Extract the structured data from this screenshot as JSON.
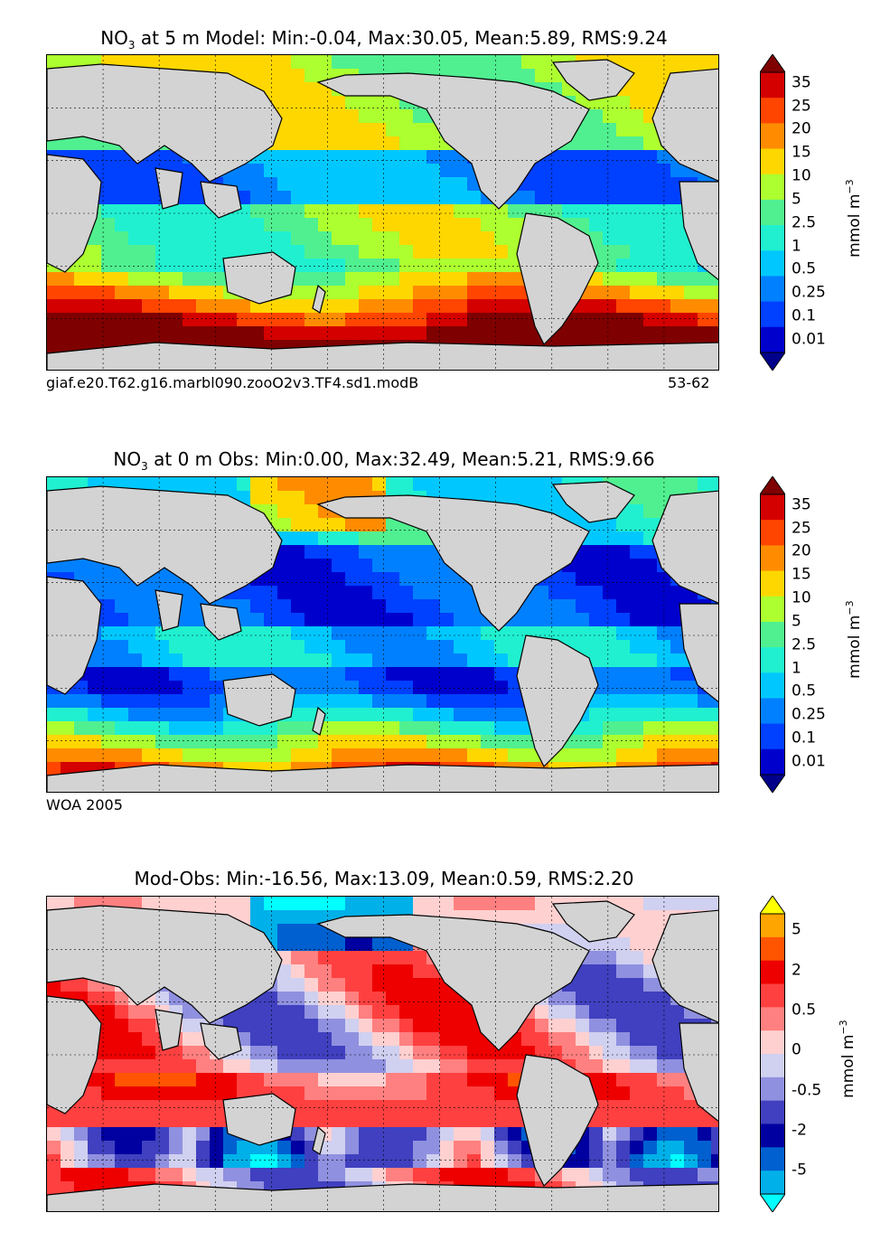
{
  "panels": [
    {
      "title_pre": "NO",
      "title_sub": "3",
      "title_post": " at 5 m Model: Min:-0.04, Max:30.05, Mean:5.89, RMS:9.24",
      "footer_left": "giaf.e20.T62.g16.marbl090.zooO2v3.TF4.sd1.modB",
      "footer_right": "53-62",
      "field": "model"
    },
    {
      "title_pre": "NO",
      "title_sub": "3",
      "title_post": " at 0 m Obs: Min:0.00, Max:32.49, Mean:5.21, RMS:9.66",
      "footer_left": "WOA 2005",
      "footer_right": "",
      "field": "obs"
    },
    {
      "title_pre": "",
      "title_sub": "",
      "title_post": "Mod-Obs: Min:-16.56, Max:13.09, Mean:0.59, RMS:2.20",
      "footer_left": "",
      "footer_right": "",
      "field": "diff"
    }
  ],
  "colorbars": {
    "concentration": {
      "ticks": [
        "35",
        "25",
        "20",
        "15",
        "10",
        "5",
        "2.5",
        "1",
        "0.5",
        "0.25",
        "0.1",
        "0.01"
      ],
      "colors": [
        "#7f0000",
        "#d40000",
        "#ff4500",
        "#ff8c00",
        "#ffd700",
        "#adff2f",
        "#50f090",
        "#20f0d0",
        "#00c8ff",
        "#0080ff",
        "#0040ff",
        "#0000cd",
        "#00008b"
      ],
      "unit_base": "mmol m",
      "unit_exp": "−3"
    },
    "difference": {
      "ticks": [
        "5",
        "2",
        "0.5",
        "0",
        "-0.5",
        "-2",
        "-5"
      ],
      "colors": [
        "#ffff00",
        "#ffa500",
        "#ff5500",
        "#ee0000",
        "#ff4040",
        "#ff8080",
        "#ffd0d0",
        "#d0d0f0",
        "#9090e0",
        "#4040c0",
        "#0000a0",
        "#0060d0",
        "#00b0e8",
        "#00ffff"
      ],
      "unit_base": "mmol m",
      "unit_exp": "−3"
    }
  },
  "colors": {
    "land": "#d3d3d3",
    "gridline": "#000000"
  }
}
